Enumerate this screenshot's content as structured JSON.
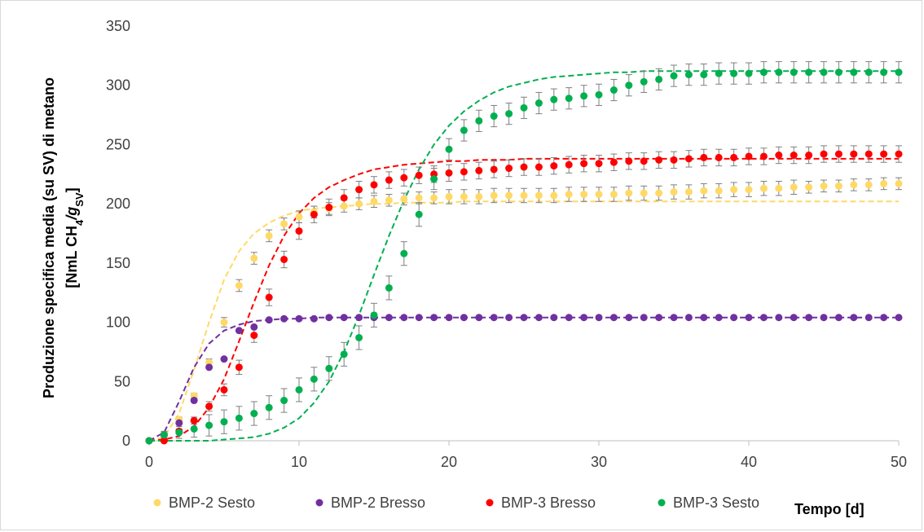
{
  "chart_data": {
    "type": "scatter",
    "title": "",
    "xlabel": "Tempo [d]",
    "ylabel_line1": "Produzione specifica media (su SV) di metano",
    "ylabel_line2_parts": [
      "[NmL CH",
      "4",
      "/g",
      "SV",
      "]"
    ],
    "xlim": [
      0,
      50
    ],
    "ylim": [
      0,
      350
    ],
    "xticks": [
      0,
      10,
      20,
      30,
      40,
      50
    ],
    "yticks": [
      0,
      50,
      100,
      150,
      200,
      250,
      300,
      350
    ],
    "grid": false,
    "legend_position": "bottom",
    "series": [
      {
        "name": "BMP-2 Sesto",
        "color": "#ffd966",
        "x": [
          0,
          1,
          2,
          3,
          4,
          5,
          6,
          7,
          8,
          9,
          10,
          11,
          12,
          13,
          14,
          15,
          16,
          17,
          18,
          19,
          20,
          21,
          22,
          23,
          24,
          25,
          26,
          27,
          28,
          29,
          30,
          31,
          32,
          33,
          34,
          35,
          36,
          37,
          38,
          39,
          40,
          41,
          42,
          43,
          44,
          45,
          46,
          47,
          48,
          49,
          50
        ],
        "y": [
          0,
          5,
          18,
          38,
          66,
          100,
          131,
          154,
          173,
          183,
          189,
          193,
          196,
          198,
          200,
          202,
          203,
          204,
          205,
          205,
          206,
          206,
          206,
          207,
          207,
          207,
          207,
          207,
          208,
          208,
          208,
          208,
          209,
          209,
          209,
          210,
          210,
          211,
          211,
          212,
          212,
          213,
          213,
          214,
          214,
          215,
          215,
          216,
          216,
          217,
          217
        ],
        "err": [
          0,
          2,
          2,
          2,
          3,
          4,
          5,
          5,
          5,
          5,
          5,
          5,
          5,
          5,
          5,
          5,
          5,
          5,
          5,
          5,
          6,
          6,
          6,
          6,
          6,
          6,
          6,
          6,
          6,
          6,
          6,
          6,
          6,
          6,
          6,
          6,
          6,
          6,
          6,
          6,
          6,
          6,
          6,
          6,
          5,
          5,
          5,
          5,
          5,
          5,
          5
        ],
        "fit": [
          0,
          3,
          23,
          60,
          100,
          136,
          160,
          175,
          184,
          190,
          194,
          196,
          197,
          198,
          199,
          200,
          200,
          201,
          201,
          201,
          201,
          202,
          202,
          202,
          202,
          202,
          202,
          202,
          202,
          202,
          202,
          202,
          202,
          202,
          202,
          202,
          202,
          202,
          202,
          202,
          202,
          202,
          202,
          202,
          202,
          202,
          202,
          202,
          202,
          202,
          202
        ]
      },
      {
        "name": "BMP-2 Bresso",
        "color": "#7030a0",
        "x": [
          0,
          1,
          2,
          3,
          4,
          5,
          6,
          7,
          8,
          9,
          10,
          11,
          12,
          13,
          14,
          15,
          16,
          17,
          18,
          19,
          20,
          21,
          22,
          23,
          24,
          25,
          26,
          27,
          28,
          29,
          30,
          31,
          32,
          33,
          34,
          35,
          36,
          37,
          38,
          39,
          40,
          41,
          42,
          43,
          44,
          45,
          46,
          47,
          48,
          49,
          50
        ],
        "y": [
          0,
          5,
          15,
          34,
          62,
          69,
          93,
          96,
          102,
          103,
          103,
          103,
          104,
          104,
          104,
          104,
          104,
          104,
          104,
          104,
          104,
          104,
          104,
          104,
          104,
          104,
          104,
          104,
          104,
          104,
          104,
          104,
          104,
          104,
          104,
          104,
          104,
          104,
          104,
          104,
          104,
          104,
          104,
          104,
          104,
          104,
          104,
          104,
          104,
          104,
          104
        ],
        "err": [
          0,
          1,
          1,
          1,
          1,
          1,
          1,
          1,
          1,
          1,
          1,
          1,
          1,
          1,
          1,
          1,
          1,
          1,
          1,
          1,
          1,
          1,
          1,
          1,
          1,
          1,
          1,
          1,
          1,
          1,
          1,
          1,
          1,
          1,
          1,
          1,
          1,
          1,
          1,
          1,
          1,
          1,
          1,
          1,
          1,
          1,
          1,
          1,
          1,
          1,
          1
        ],
        "fit": [
          0,
          7,
          33,
          62,
          82,
          93,
          98,
          101,
          102,
          103,
          103,
          104,
          104,
          104,
          104,
          104,
          104,
          104,
          104,
          104,
          104,
          104,
          104,
          104,
          104,
          104,
          104,
          104,
          104,
          104,
          104,
          104,
          104,
          104,
          104,
          104,
          104,
          104,
          104,
          104,
          104,
          104,
          104,
          104,
          104,
          104,
          104,
          104,
          104,
          104,
          104
        ]
      },
      {
        "name": "BMP-3 Bresso",
        "color": "#ff0000",
        "x": [
          0,
          1,
          2,
          3,
          4,
          5,
          6,
          7,
          8,
          9,
          10,
          11,
          12,
          13,
          14,
          15,
          16,
          17,
          18,
          19,
          20,
          21,
          22,
          23,
          24,
          25,
          26,
          27,
          28,
          29,
          30,
          31,
          32,
          33,
          34,
          35,
          36,
          37,
          38,
          39,
          40,
          41,
          42,
          43,
          44,
          45,
          46,
          47,
          48,
          49,
          50
        ],
        "y": [
          0,
          0,
          8,
          17,
          29,
          43,
          62,
          89,
          121,
          153,
          177,
          191,
          197,
          205,
          212,
          216,
          220,
          222,
          224,
          225,
          226,
          227,
          228,
          229,
          230,
          231,
          231,
          232,
          233,
          234,
          234,
          235,
          236,
          236,
          237,
          237,
          238,
          239,
          239,
          239,
          240,
          240,
          241,
          241,
          241,
          242,
          242,
          242,
          242,
          242,
          242
        ],
        "err": [
          0,
          1,
          2,
          3,
          4,
          5,
          6,
          6,
          7,
          7,
          7,
          7,
          7,
          7,
          7,
          7,
          7,
          7,
          7,
          7,
          7,
          7,
          7,
          7,
          7,
          7,
          7,
          7,
          7,
          7,
          7,
          7,
          7,
          7,
          7,
          7,
          7,
          7,
          7,
          7,
          7,
          7,
          7,
          7,
          7,
          7,
          7,
          7,
          7,
          7,
          7
        ],
        "fit": [
          0,
          1,
          4,
          12,
          28,
          52,
          84,
          117,
          148,
          173,
          192,
          205,
          214,
          220,
          225,
          229,
          231,
          233,
          234,
          235,
          236,
          236,
          237,
          237,
          237,
          238,
          238,
          238,
          238,
          238,
          238,
          238,
          238,
          238,
          238,
          238,
          238,
          238,
          238,
          238,
          238,
          238,
          238,
          238,
          238,
          238,
          238,
          238,
          238,
          238,
          238
        ]
      },
      {
        "name": "BMP-3 Sesto",
        "color": "#00b050",
        "x": [
          0,
          1,
          2,
          3,
          4,
          5,
          6,
          7,
          8,
          9,
          10,
          11,
          12,
          13,
          14,
          15,
          16,
          17,
          18,
          19,
          20,
          21,
          22,
          23,
          24,
          25,
          26,
          27,
          28,
          29,
          30,
          31,
          32,
          33,
          34,
          35,
          36,
          37,
          38,
          39,
          40,
          41,
          42,
          43,
          44,
          45,
          46,
          47,
          48,
          49,
          50
        ],
        "y": [
          0,
          5,
          7,
          10,
          13,
          16,
          19,
          23,
          28,
          34,
          43,
          52,
          61,
          73,
          87,
          106,
          129,
          158,
          191,
          221,
          246,
          262,
          270,
          274,
          276,
          281,
          285,
          288,
          289,
          291,
          292,
          296,
          300,
          303,
          305,
          308,
          309,
          309,
          310,
          310,
          310,
          311,
          311,
          311,
          311,
          311,
          311,
          311,
          311,
          311,
          311
        ],
        "err": [
          0,
          3,
          5,
          7,
          9,
          10,
          10,
          10,
          10,
          10,
          10,
          10,
          10,
          10,
          10,
          10,
          10,
          10,
          10,
          9,
          9,
          9,
          9,
          9,
          9,
          9,
          9,
          9,
          9,
          9,
          9,
          9,
          9,
          9,
          9,
          9,
          9,
          9,
          9,
          9,
          9,
          9,
          9,
          9,
          9,
          9,
          9,
          9,
          9,
          9,
          9
        ],
        "fit": [
          0,
          0,
          0,
          0,
          0,
          1,
          2,
          3,
          6,
          11,
          19,
          32,
          50,
          75,
          106,
          140,
          173,
          203,
          229,
          250,
          266,
          278,
          287,
          294,
          299,
          302,
          305,
          307,
          308,
          309,
          310,
          311,
          311,
          312,
          312,
          312,
          312,
          312,
          312,
          312,
          312,
          312,
          312,
          312,
          312,
          312,
          312,
          312,
          312,
          312,
          312
        ]
      }
    ]
  }
}
